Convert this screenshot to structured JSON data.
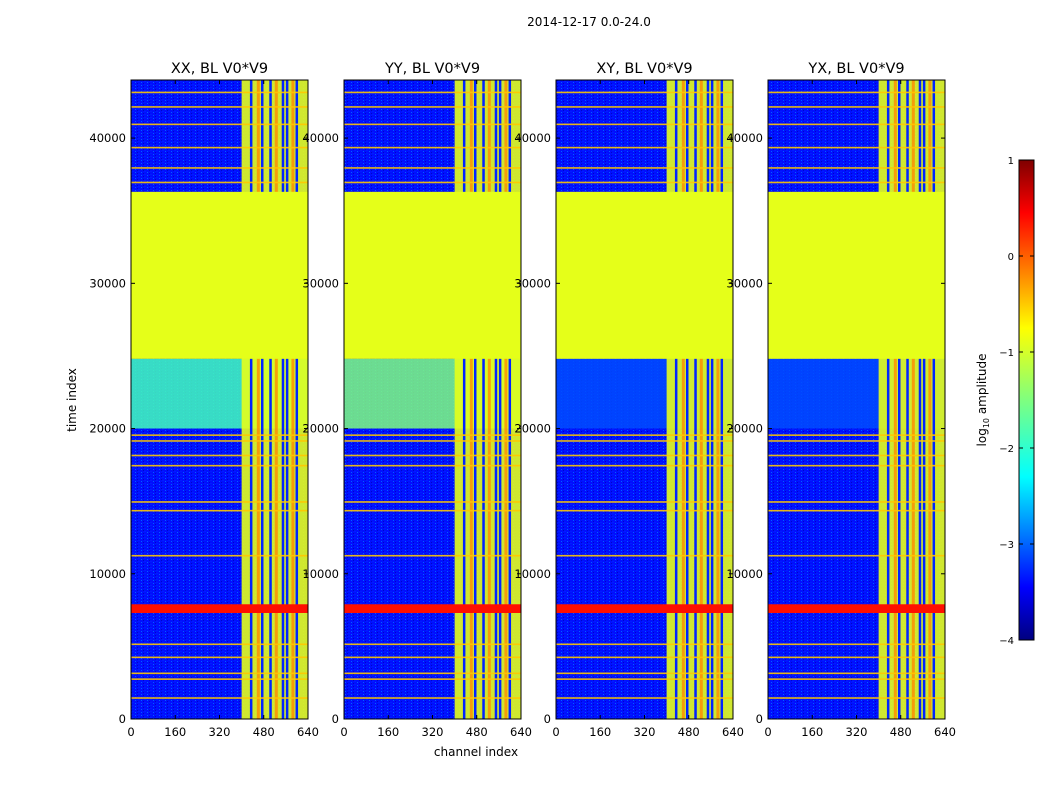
{
  "chart_data": {
    "type": "heatmap",
    "title": "2014-12-17 0.0-24.0",
    "xlabel": "channel index",
    "ylabel": "time index",
    "xlim": [
      0,
      640
    ],
    "ylim": [
      0,
      44000
    ],
    "xticks": [
      "0",
      "160",
      "320",
      "480",
      "640"
    ],
    "yticks": [
      "0",
      "10000",
      "20000",
      "30000",
      "40000"
    ],
    "colorbar": {
      "label": "log10 amplitude",
      "ticks": [
        "1",
        "0",
        "−1",
        "−2",
        "−3",
        "−4"
      ],
      "range": [
        -4,
        1
      ],
      "colormap": [
        "#00007f",
        "#0000ff",
        "#007fff",
        "#00ffff",
        "#7fff7f",
        "#ffff00",
        "#ff7f00",
        "#ff0000",
        "#7f0000"
      ]
    },
    "panels": [
      {
        "title": "XX, BL V0*V9",
        "band_level": -1.8
      },
      {
        "title": "YY, BL V0*V9",
        "band_level": -1.5
      },
      {
        "title": "XY, BL V0*V9",
        "band_level": -3.0
      },
      {
        "title": "YX, BL V0*V9",
        "band_level": -3.0
      }
    ],
    "regions": {
      "flagged_gap": {
        "t_start": 24800,
        "t_end": 36300,
        "level": -1.0
      },
      "rfi_band": {
        "t_start": 7300,
        "t_end": 7900,
        "level": 0.3
      },
      "rfi_channels": [
        400,
        640
      ],
      "background_level": -3.3,
      "strong_band_start_t": 20000
    }
  }
}
